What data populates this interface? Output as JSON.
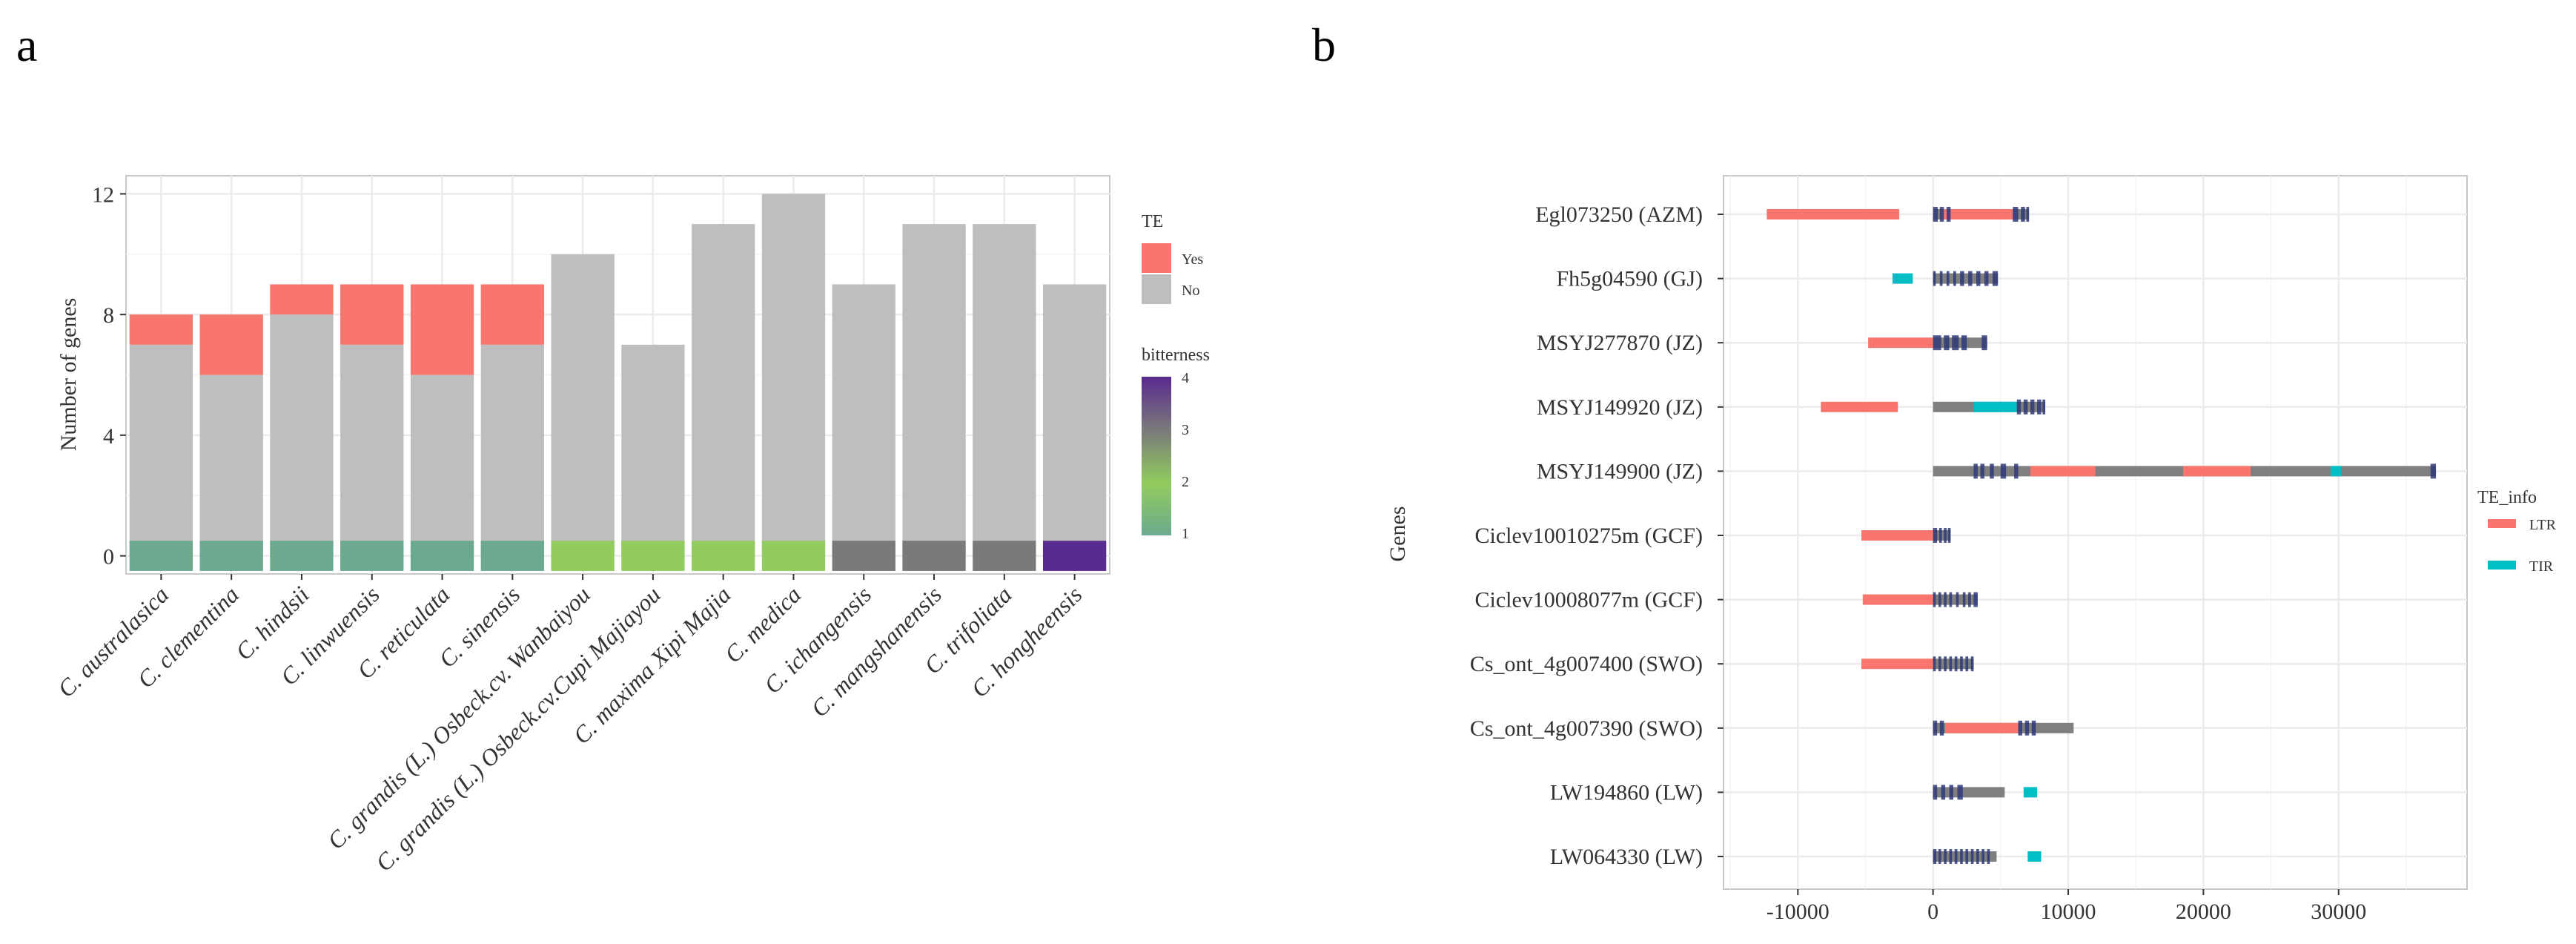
{
  "panels": {
    "a": "a",
    "b": "b"
  },
  "colors": {
    "te_yes": "#F8766D",
    "te_no": "#BEBEBE",
    "ltr": "#F8766D",
    "tir": "#00BFC4",
    "gene_body": "#7F7F7F",
    "exon": "#2E3A78",
    "grid": "#EBEBEB",
    "bitterness_scale": [
      "#6BAA8E",
      "#92CC5E",
      "#7A7A7A",
      "#5A2B8E"
    ]
  },
  "chart_data": [
    {
      "id": "a",
      "type": "bar",
      "stacked": true,
      "title": "",
      "xlabel": "",
      "ylabel": "Number of genes",
      "ylim": [
        -0.6,
        12.6
      ],
      "yticks": [
        0,
        4,
        8,
        12
      ],
      "categories": [
        "C. australasica",
        "C. clementina",
        "C. hindsii",
        "C. linwuensis",
        "C. reticulata",
        "C. sinensis",
        "C. grandis (L.) Osbeck.cv. Wanbaiyou",
        "C. grandis (L.) Osbeck.cv.Cupi Majiayou",
        "C. maxima Xipi Majia",
        "C. medica",
        "C. ichangensis",
        "C. mangshanensis",
        "C. trifoliata",
        "C. hongheensis"
      ],
      "series": [
        {
          "name": "No",
          "values": [
            7,
            6,
            8,
            7,
            6,
            7,
            10,
            7,
            11,
            12,
            9,
            11,
            11,
            9
          ]
        },
        {
          "name": "Yes",
          "values": [
            1,
            2,
            1,
            2,
            3,
            2,
            0,
            0,
            0,
            0,
            0,
            0,
            0,
            0
          ]
        }
      ],
      "bitterness": [
        1,
        1,
        1,
        1,
        1,
        1,
        2,
        2,
        2,
        2,
        3,
        3,
        3,
        4
      ],
      "legend_te": {
        "title": "TE",
        "items": [
          "Yes",
          "No"
        ]
      },
      "legend_bitterness": {
        "title": "bitterness",
        "ticks": [
          1,
          2,
          3,
          4
        ]
      }
    },
    {
      "id": "b",
      "type": "gene-structure",
      "xlabel": "",
      "ylabel": "Genes",
      "xlim": [
        -15500,
        39500
      ],
      "xticks": [
        -10000,
        0,
        10000,
        20000,
        30000
      ],
      "genes": [
        {
          "label": "Egl073250 (AZM)",
          "length": 7100,
          "exons": [
            [
              0,
              350
            ],
            [
              500,
              800
            ],
            [
              1000,
              1300
            ],
            [
              5900,
              6300
            ],
            [
              6500,
              6800
            ],
            [
              6900,
              7100
            ]
          ],
          "te": [
            {
              "type": "LTR",
              "start": -12300,
              "end": -2500
            },
            {
              "type": "LTR",
              "start": 600,
              "end": 5900
            }
          ]
        },
        {
          "label": "Fh5g04590 (GJ)",
          "length": 4800,
          "exons": [
            [
              0,
              200
            ],
            [
              500,
              700
            ],
            [
              1000,
              1200
            ],
            [
              1500,
              1700
            ],
            [
              2000,
              2300
            ],
            [
              2600,
              2900
            ],
            [
              3200,
              3500
            ],
            [
              3800,
              4100
            ],
            [
              4400,
              4800
            ]
          ],
          "te": [
            {
              "type": "TIR",
              "start": -3000,
              "end": -1500
            }
          ]
        },
        {
          "label": "MSYJ277870 (JZ)",
          "length": 4000,
          "exons": [
            [
              0,
              600
            ],
            [
              800,
              1200
            ],
            [
              1400,
              1900
            ],
            [
              2100,
              2500
            ],
            [
              3600,
              4000
            ]
          ],
          "te": [
            {
              "type": "LTR",
              "start": -4800,
              "end": 0
            }
          ]
        },
        {
          "label": "MSYJ149920 (JZ)",
          "length": 8300,
          "exons": [
            [
              6200,
              6500
            ],
            [
              6700,
              7000
            ],
            [
              7200,
              7500
            ],
            [
              7700,
              8000
            ],
            [
              8100,
              8300
            ]
          ],
          "te": [
            {
              "type": "LTR",
              "start": -8300,
              "end": -2600
            },
            {
              "type": "TIR",
              "start": 3000,
              "end": 6200
            }
          ]
        },
        {
          "label": "MSYJ149900 (JZ)",
          "length": 37200,
          "exons": [
            [
              3000,
              3300
            ],
            [
              3500,
              3800
            ],
            [
              4200,
              4500
            ],
            [
              5000,
              5400
            ],
            [
              6000,
              6300
            ],
            [
              36800,
              37200
            ]
          ],
          "te": [
            {
              "type": "LTR",
              "start": 7200,
              "end": 12000
            },
            {
              "type": "LTR",
              "start": 18500,
              "end": 23500
            },
            {
              "type": "TIR",
              "start": 29400,
              "end": 30200
            }
          ]
        },
        {
          "label": "Ciclev10010275m (GCF)",
          "length": 1300,
          "exons": [
            [
              0,
              300
            ],
            [
              450,
              650
            ],
            [
              800,
              1000
            ],
            [
              1100,
              1300
            ]
          ],
          "te": [
            {
              "type": "LTR",
              "start": -5300,
              "end": 0
            }
          ]
        },
        {
          "label": "Ciclev10008077m (GCF)",
          "length": 3300,
          "exons": [
            [
              0,
              200
            ],
            [
              400,
              600
            ],
            [
              800,
              1000
            ],
            [
              1200,
              1400
            ],
            [
              1700,
              1900
            ],
            [
              2200,
              2400
            ],
            [
              2600,
              2800
            ],
            [
              3000,
              3300
            ]
          ],
          "te": [
            {
              "type": "LTR",
              "start": -5200,
              "end": 0
            }
          ]
        },
        {
          "label": "Cs_ont_4g007400 (SWO)",
          "length": 3000,
          "exons": [
            [
              0,
              200
            ],
            [
              400,
              600
            ],
            [
              800,
              1000
            ],
            [
              1200,
              1400
            ],
            [
              1600,
              1800
            ],
            [
              2000,
              2200
            ],
            [
              2400,
              2600
            ],
            [
              2800,
              3000
            ]
          ],
          "te": [
            {
              "type": "LTR",
              "start": -5300,
              "end": 0
            }
          ]
        },
        {
          "label": "Cs_ont_4g007390 (SWO)",
          "length": 10400,
          "exons": [
            [
              0,
              300
            ],
            [
              500,
              800
            ],
            [
              6300,
              6600
            ],
            [
              6800,
              7100
            ],
            [
              7300,
              7600
            ]
          ],
          "te": [
            {
              "type": "LTR",
              "start": 900,
              "end": 6300
            }
          ]
        },
        {
          "label": "LW194860 (LW)",
          "length": 5300,
          "exons": [
            [
              0,
              300
            ],
            [
              600,
              900
            ],
            [
              1200,
              1500
            ],
            [
              1800,
              2200
            ]
          ],
          "te": [
            {
              "type": "TIR",
              "start": 6700,
              "end": 7700
            }
          ]
        },
        {
          "label": "LW064330 (LW)",
          "length": 4700,
          "exons": [
            [
              0,
              250
            ],
            [
              400,
              600
            ],
            [
              800,
              1000
            ],
            [
              1200,
              1400
            ],
            [
              1600,
              1800
            ],
            [
              2000,
              2200
            ],
            [
              2400,
              2600
            ],
            [
              2800,
              3000
            ],
            [
              3200,
              3400
            ],
            [
              3600,
              3800
            ],
            [
              4000,
              4200
            ]
          ],
          "te": [
            {
              "type": "TIR",
              "start": 7000,
              "end": 8000
            }
          ]
        }
      ],
      "legend": {
        "title": "TE_info",
        "items": [
          "LTR",
          "TIR"
        ]
      }
    }
  ]
}
